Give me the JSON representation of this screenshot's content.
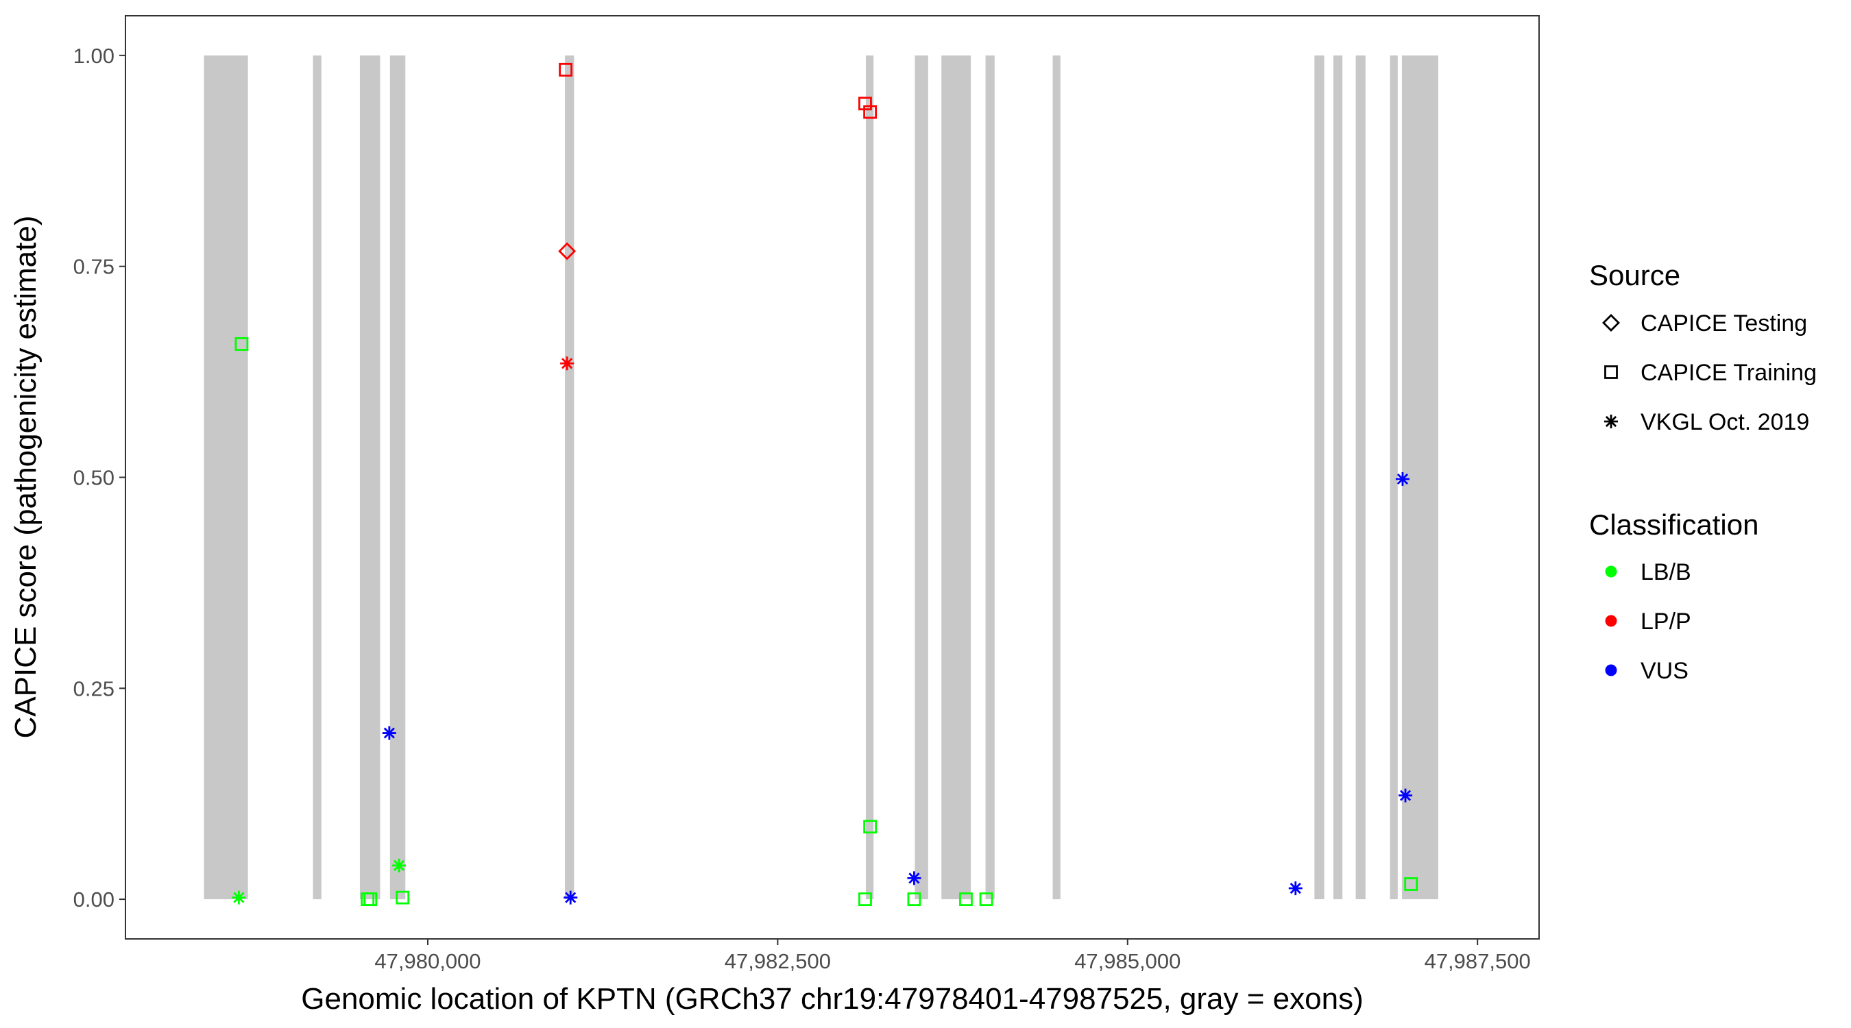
{
  "chart_data": {
    "type": "scatter",
    "title": "",
    "xlabel": "Genomic location of KPTN (GRCh37 chr19:47978401-47987525, gray = exons)",
    "ylabel": "CAPICE score (pathogenicity estimate)",
    "xlim": [
      47977840,
      47987940
    ],
    "ylim": [
      -0.047,
      1.047
    ],
    "x_ticks": [
      47980000,
      47982500,
      47985000,
      47987500
    ],
    "x_tick_labels": [
      "47,980,000",
      "47,982,500",
      "47,985,000",
      "47,987,500"
    ],
    "y_ticks": [
      0,
      0.25,
      0.5,
      0.75,
      1.0
    ],
    "y_tick_labels": [
      "0.00",
      "0.25",
      "0.50",
      "0.75",
      "1.00"
    ],
    "grid": false,
    "exons": [
      [
        47978401,
        47978715
      ],
      [
        47979180,
        47979240
      ],
      [
        47979515,
        47979660
      ],
      [
        47979730,
        47979840
      ],
      [
        47980980,
        47981045
      ],
      [
        47983130,
        47983185
      ],
      [
        47983480,
        47983575
      ],
      [
        47983670,
        47983880
      ],
      [
        47983985,
        47984050
      ],
      [
        47984465,
        47984520
      ],
      [
        47986335,
        47986405
      ],
      [
        47986470,
        47986535
      ],
      [
        47986630,
        47986700
      ],
      [
        47986875,
        47986930
      ],
      [
        47986960,
        47987220
      ]
    ],
    "exon_color": "#c8c8c8",
    "legend": {
      "placement": "right",
      "source": {
        "title": "Source",
        "items": [
          {
            "label": "CAPICE Testing",
            "shape": "diamond"
          },
          {
            "label": "CAPICE Training",
            "shape": "square"
          },
          {
            "label": "VKGL Oct. 2019",
            "shape": "asterisk"
          }
        ]
      },
      "classification": {
        "title": "Classification",
        "items": [
          {
            "label": "LB/B",
            "color": "#00ff00"
          },
          {
            "label": "LP/P",
            "color": "#ff0000"
          },
          {
            "label": "VUS",
            "color": "#0000ff"
          }
        ]
      }
    },
    "points": [
      {
        "x": 47978650,
        "y": 0.002,
        "source": "VKGL Oct. 2019",
        "class": "LB/B"
      },
      {
        "x": 47978670,
        "y": 0.658,
        "source": "CAPICE Training",
        "class": "LB/B"
      },
      {
        "x": 47979570,
        "y": 0.0,
        "source": "CAPICE Training",
        "class": "LB/B"
      },
      {
        "x": 47979590,
        "y": 0.0,
        "source": "CAPICE Training",
        "class": "LB/B"
      },
      {
        "x": 47979725,
        "y": 0.197,
        "source": "VKGL Oct. 2019",
        "class": "VUS"
      },
      {
        "x": 47979795,
        "y": 0.04,
        "source": "VKGL Oct. 2019",
        "class": "LB/B"
      },
      {
        "x": 47979820,
        "y": 0.002,
        "source": "CAPICE Training",
        "class": "LB/B"
      },
      {
        "x": 47980985,
        "y": 0.983,
        "source": "CAPICE Training",
        "class": "LP/P"
      },
      {
        "x": 47980995,
        "y": 0.768,
        "source": "CAPICE Testing",
        "class": "LP/P"
      },
      {
        "x": 47980995,
        "y": 0.635,
        "source": "VKGL Oct. 2019",
        "class": "LP/P"
      },
      {
        "x": 47981020,
        "y": 0.002,
        "source": "VKGL Oct. 2019",
        "class": "VUS"
      },
      {
        "x": 47983125,
        "y": 0.943,
        "source": "CAPICE Training",
        "class": "LP/P"
      },
      {
        "x": 47983160,
        "y": 0.933,
        "source": "CAPICE Training",
        "class": "LP/P"
      },
      {
        "x": 47983160,
        "y": 0.086,
        "source": "CAPICE Training",
        "class": "LB/B"
      },
      {
        "x": 47983125,
        "y": 0.0,
        "source": "CAPICE Training",
        "class": "LB/B"
      },
      {
        "x": 47983475,
        "y": 0.025,
        "source": "VKGL Oct. 2019",
        "class": "VUS"
      },
      {
        "x": 47983475,
        "y": 0.0,
        "source": "CAPICE Training",
        "class": "LB/B"
      },
      {
        "x": 47983845,
        "y": 0.0,
        "source": "CAPICE Training",
        "class": "LB/B"
      },
      {
        "x": 47983990,
        "y": 0.0,
        "source": "CAPICE Training",
        "class": "LB/B"
      },
      {
        "x": 47986200,
        "y": 0.013,
        "source": "VKGL Oct. 2019",
        "class": "VUS"
      },
      {
        "x": 47986965,
        "y": 0.498,
        "source": "VKGL Oct. 2019",
        "class": "VUS"
      },
      {
        "x": 47986985,
        "y": 0.123,
        "source": "VKGL Oct. 2019",
        "class": "VUS"
      },
      {
        "x": 47987025,
        "y": 0.018,
        "source": "CAPICE Training",
        "class": "LB/B"
      }
    ]
  }
}
